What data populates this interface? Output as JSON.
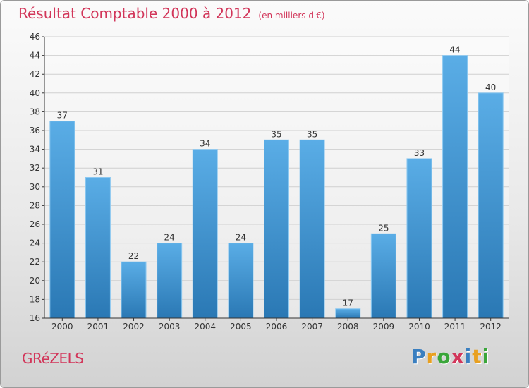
{
  "chart_data": {
    "type": "bar",
    "title": "Résultat Comptable 2000 à 2012",
    "subtitle": "(en milliers d'€)",
    "categories": [
      "2000",
      "2001",
      "2002",
      "2003",
      "2004",
      "2005",
      "2006",
      "2007",
      "2008",
      "2009",
      "2010",
      "2011",
      "2012"
    ],
    "values": [
      37,
      31,
      22,
      24,
      34,
      24,
      35,
      35,
      17,
      25,
      33,
      44,
      40
    ],
    "ylim": [
      16,
      46
    ],
    "yticks": [
      16,
      18,
      20,
      22,
      24,
      26,
      28,
      30,
      32,
      34,
      36,
      38,
      40,
      42,
      44,
      46
    ],
    "xlabel": "",
    "ylabel": "",
    "grid": true,
    "bar_color_top": "#5aade6",
    "bar_color_bottom": "#2a78b4",
    "data_labels": true
  },
  "footer": {
    "commune": "GRéZELS",
    "brand": "Proxiti",
    "brand_colors": [
      "#3a7fc0",
      "#e8a020",
      "#3aa63a",
      "#d2365a",
      "#3a7fc0",
      "#e8a020",
      "#3aa63a"
    ]
  },
  "colors": {
    "title": "#d2365a",
    "axis": "#333333",
    "grid": "#d0d0d0"
  }
}
